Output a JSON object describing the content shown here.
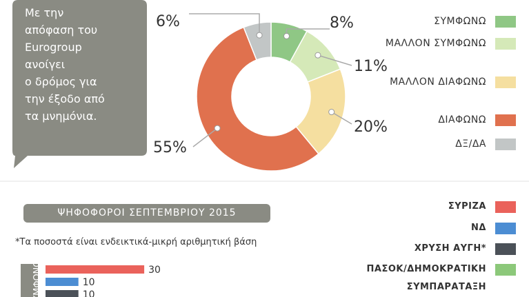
{
  "chart_data": [
    {
      "type": "pie",
      "annotation_lines": [
        "Με την",
        "απόφαση του",
        "Eurogroup",
        "ανοίγει",
        "ο δρόμος για",
        "την έξοδο από",
        "τα μνημόνια."
      ],
      "categories": [
        "ΣΥΜΦΩΝΩ",
        "ΜΑΛΛΟΝ ΣΥΜΦΩΝΩ",
        "ΜΑΛΛΟΝ ΔΙΑΦΩΝΩ",
        "ΔΙΑΦΩΝΩ",
        "ΔΞ/ΔΑ"
      ],
      "values": [
        8,
        11,
        20,
        55,
        6
      ],
      "value_labels": [
        "8%",
        "11%",
        "20%",
        "55%",
        "6%"
      ],
      "colors": [
        "#8fc785",
        "#d5e9b8",
        "#f5dfa0",
        "#e0714e",
        "#c2c6c6"
      ]
    },
    {
      "type": "bar",
      "title": "ΨΗΦΟΦΟΡΟΙ ΣΕΠΤΕΜΒΡΙΟΥ 2015",
      "subtitle": "*Τα ποσοστά είναι ενδεικτικά-μικρή αριθμητική βάση",
      "categories": [
        "ΣΥΜΦΩΝΩ"
      ],
      "series": [
        {
          "name": "ΣΥΡΙΖΑ",
          "color": "#ea625b",
          "values": [
            30
          ]
        },
        {
          "name": "ΝΔ",
          "color": "#4c8dd3",
          "values": [
            10
          ]
        },
        {
          "name": "ΧΡΥΣΗ ΑΥΓΗ*",
          "color": "#4b5158",
          "values": [
            10
          ]
        },
        {
          "name": "ΠΑΣΟΚ/ΔΗΜΟΚΡΑΤΙΚΗ ΣΥΜΠΑΡΑΤΑΞΗ",
          "color": "#8cc87a",
          "values": [
            null
          ]
        }
      ]
    }
  ]
}
